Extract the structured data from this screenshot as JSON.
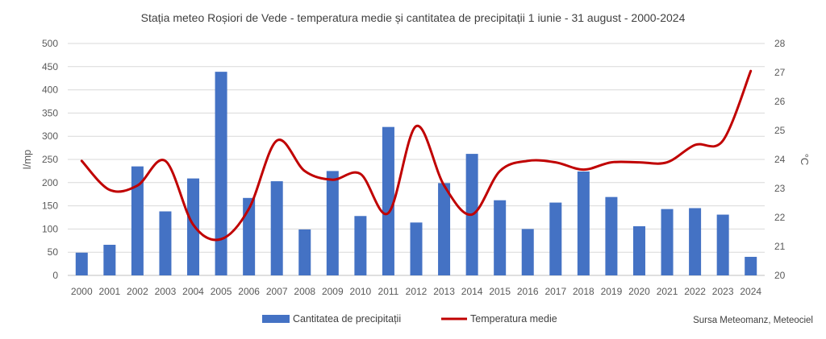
{
  "chart_data": {
    "type": "bar+line",
    "title": "Stația meteo Roșiori de Vede - temperatura medie și cantitatea de precipitații 1 iunie - 31 august - 2000-2024",
    "categories": [
      "2000",
      "2001",
      "2002",
      "2003",
      "2004",
      "2005",
      "2006",
      "2007",
      "2008",
      "2009",
      "2010",
      "2011",
      "2012",
      "2013",
      "2014",
      "2015",
      "2016",
      "2017",
      "2018",
      "2019",
      "2020",
      "2021",
      "2022",
      "2023",
      "2024"
    ],
    "series": [
      {
        "name": "Cantitatea de precipitații",
        "type": "bar",
        "axis": "left",
        "color": "#4472C4",
        "values": [
          49,
          66,
          235,
          138,
          209,
          439,
          167,
          203,
          99,
          225,
          128,
          320,
          114,
          199,
          262,
          162,
          100,
          157,
          224,
          169,
          106,
          143,
          145,
          131,
          40
        ]
      },
      {
        "name": "Temperatura medie",
        "type": "line",
        "axis": "right",
        "color": "#C00000",
        "smooth": true,
        "values": [
          23.95,
          22.95,
          23.1,
          23.95,
          21.75,
          21.25,
          22.3,
          24.65,
          23.6,
          23.3,
          23.5,
          22.15,
          25.15,
          23.1,
          22.1,
          23.6,
          23.95,
          23.9,
          23.65,
          23.9,
          23.9,
          23.9,
          24.5,
          24.65,
          27.05
        ]
      }
    ],
    "ylabel_left": "l/mp",
    "ylabel_right": "°C",
    "ylim_left": [
      0,
      500
    ],
    "yticks_left": [
      0,
      50,
      100,
      150,
      200,
      250,
      300,
      350,
      400,
      450,
      500
    ],
    "ylim_right": [
      20,
      28
    ],
    "yticks_right": [
      20,
      21,
      22,
      23,
      24,
      25,
      26,
      27,
      28
    ],
    "grid": true,
    "legend": "bottom-center",
    "source": "Sursa Meteomanz, Meteociel"
  }
}
